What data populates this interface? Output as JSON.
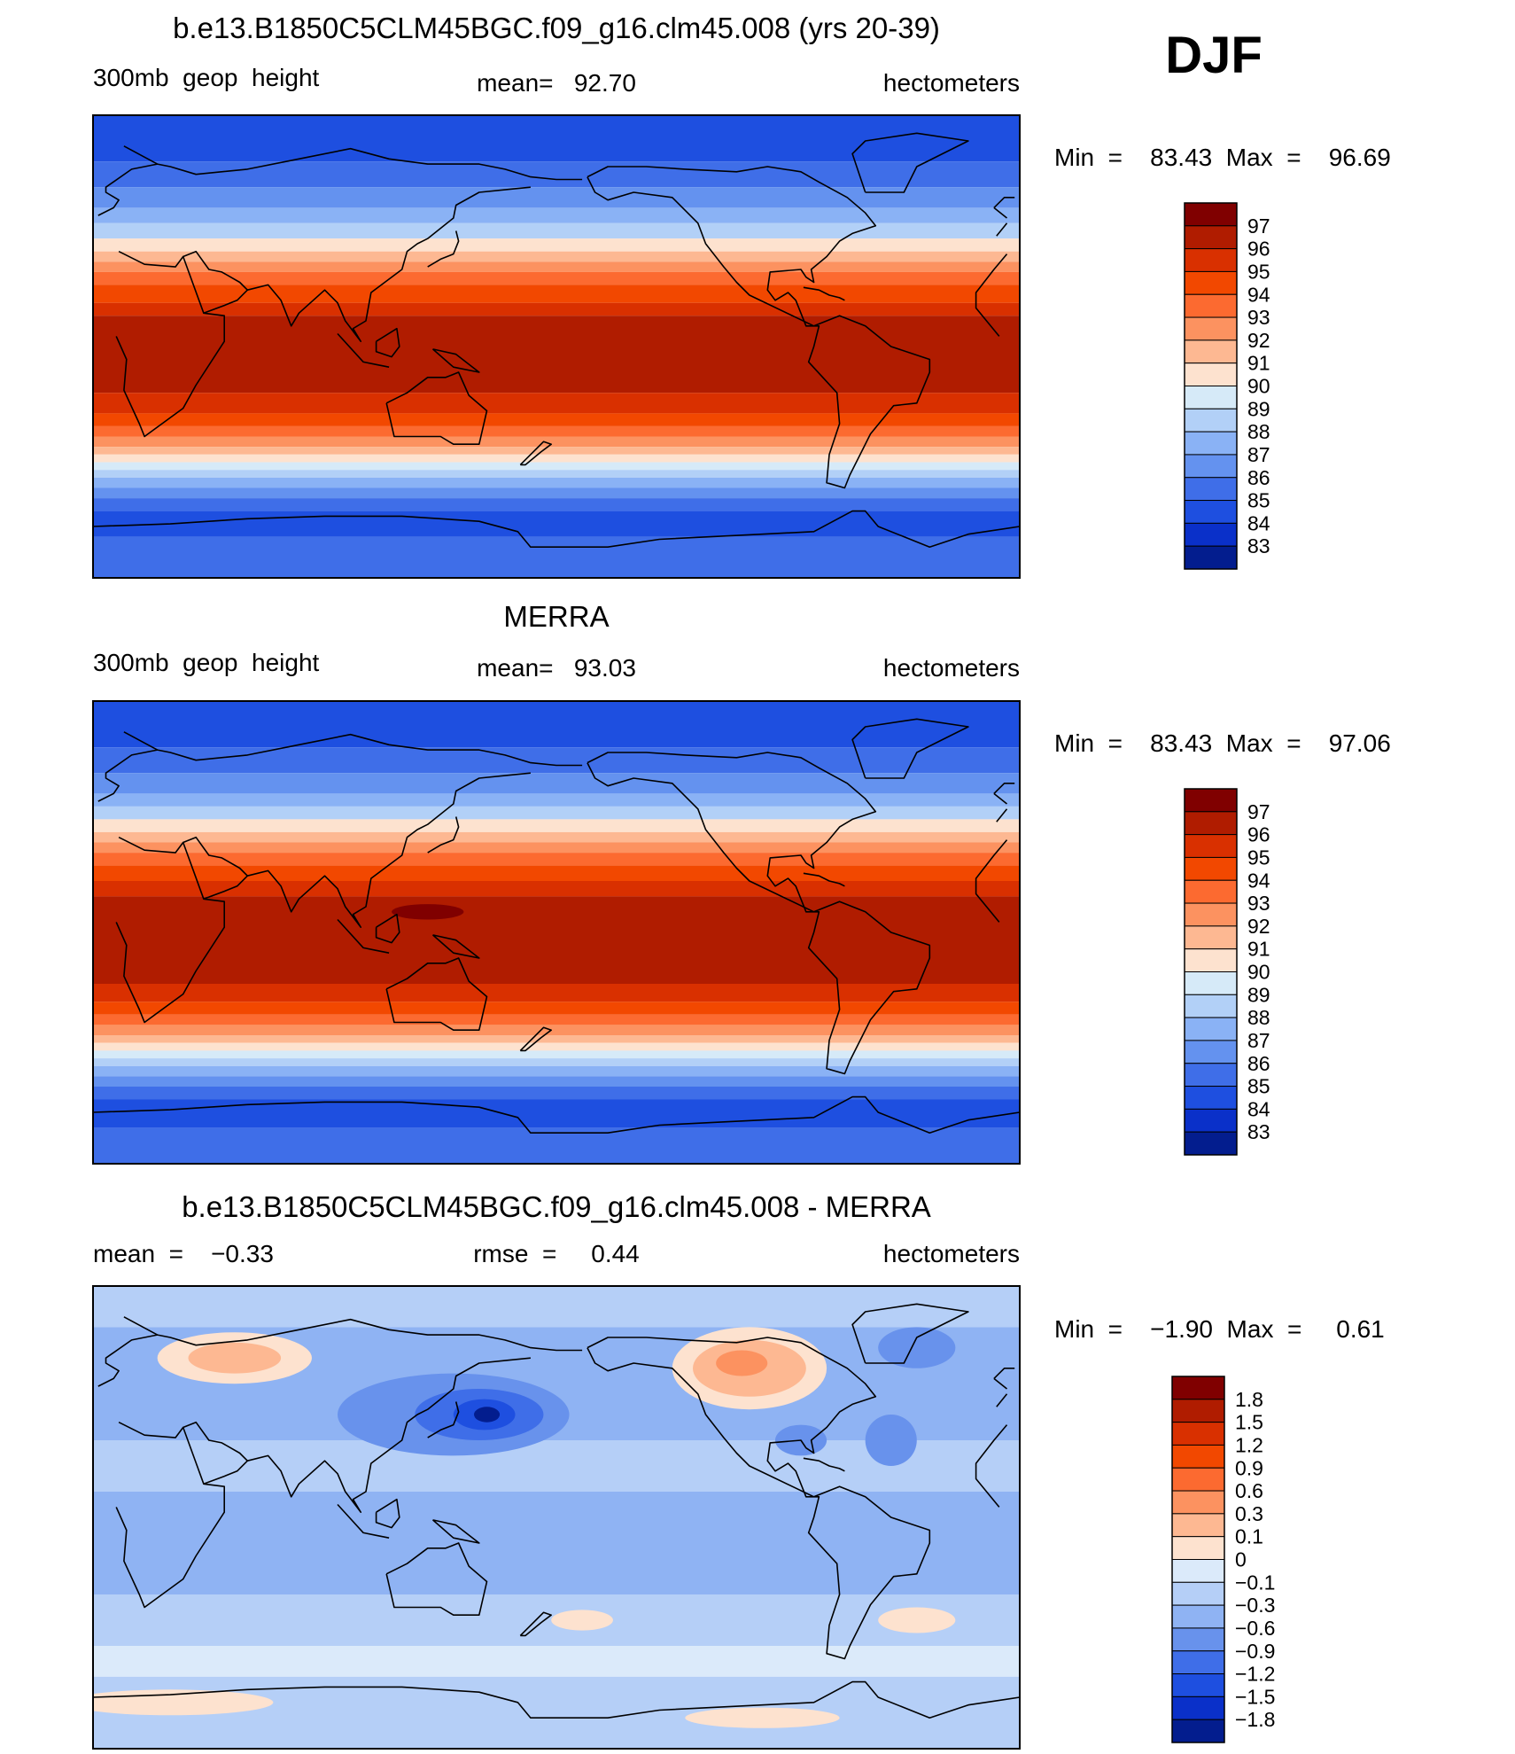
{
  "season": "DJF",
  "panels": [
    {
      "id": "model",
      "title": "b.e13.B1850C5CLM45BGC.f09_g16.clm45.008 (yrs 20-39)",
      "left": "300mb  geop  height",
      "center": "mean=   92.70",
      "right": "hectometers",
      "minmax": "Min  =    83.43  Max  =    96.69",
      "colorbar": {
        "labels": [
          "97",
          "96",
          "95",
          "94",
          "93",
          "92",
          "91",
          "90",
          "89",
          "88",
          "87",
          "86",
          "85",
          "84",
          "83"
        ],
        "colors": [
          "#800000",
          "#b01c00",
          "#d93000",
          "#f24800",
          "#fc6a30",
          "#fc9260",
          "#fdb892",
          "#fde2cf",
          "#d6eaf8",
          "#b2d0f7",
          "#8ab2f5",
          "#6492ef",
          "#3f6ee8",
          "#1e4fe0",
          "#0a30c9",
          "#031d8e"
        ]
      },
      "map_field": "model"
    },
    {
      "id": "obs",
      "title": "MERRA",
      "left": "300mb  geop  height",
      "center": "mean=   93.03",
      "right": "hectometers",
      "minmax": "Min  =    83.43  Max  =    97.06",
      "colorbar": {
        "labels": [
          "97",
          "96",
          "95",
          "94",
          "93",
          "92",
          "91",
          "90",
          "89",
          "88",
          "87",
          "86",
          "85",
          "84",
          "83"
        ],
        "colors": [
          "#800000",
          "#b01c00",
          "#d93000",
          "#f24800",
          "#fc6a30",
          "#fc9260",
          "#fdb892",
          "#fde2cf",
          "#d6eaf8",
          "#b2d0f7",
          "#8ab2f5",
          "#6492ef",
          "#3f6ee8",
          "#1e4fe0",
          "#0a30c9",
          "#031d8e"
        ]
      },
      "map_field": "obs"
    },
    {
      "id": "diff",
      "title": "b.e13.B1850C5CLM45BGC.f09_g16.clm45.008 - MERRA",
      "left": "mean  =    −0.33",
      "center": "rmse  =     0.44",
      "right": "hectometers",
      "minmax": "Min  =    −1.90  Max  =     0.61",
      "colorbar": {
        "labels": [
          "1.8",
          "1.5",
          "1.2",
          "0.9",
          "0.6",
          "0.3",
          "0.1",
          "0",
          "−0.1",
          "−0.3",
          "−0.6",
          "−0.9",
          "−1.2",
          "−1.5",
          "−1.8"
        ],
        "colors": [
          "#800000",
          "#b01c00",
          "#d93000",
          "#f24800",
          "#fc6a30",
          "#fc9260",
          "#fdb892",
          "#fde2cf",
          "#dbeafa",
          "#b5cff7",
          "#8fb3f3",
          "#6892ec",
          "#3f6ee8",
          "#1e4fe0",
          "#0a30c9",
          "#031d8e"
        ]
      },
      "map_field": "diff"
    }
  ],
  "map_bands": {
    "model": [
      {
        "lat": 90,
        "color": "#1e4fe0"
      },
      {
        "lat": 72,
        "color": "#3f6ee8"
      },
      {
        "lat": 62,
        "color": "#6492ef"
      },
      {
        "lat": 54,
        "color": "#8ab2f5"
      },
      {
        "lat": 48,
        "color": "#b2d0f7"
      },
      {
        "lat": 42,
        "color": "#fde2cf"
      },
      {
        "lat": 37,
        "color": "#fdb892"
      },
      {
        "lat": 33,
        "color": "#fc9260"
      },
      {
        "lat": 29,
        "color": "#fc6a30"
      },
      {
        "lat": 24,
        "color": "#f24800"
      },
      {
        "lat": 17,
        "color": "#d93000"
      },
      {
        "lat": 12,
        "color": "#b01c00"
      },
      {
        "lat": -18,
        "color": "#d93000"
      },
      {
        "lat": -26,
        "color": "#f24800"
      },
      {
        "lat": -31,
        "color": "#fc6a30"
      },
      {
        "lat": -35,
        "color": "#fc9260"
      },
      {
        "lat": -39,
        "color": "#fdb892"
      },
      {
        "lat": -42,
        "color": "#fde2cf"
      },
      {
        "lat": -45,
        "color": "#d6eaf8"
      },
      {
        "lat": -48,
        "color": "#b2d0f7"
      },
      {
        "lat": -51,
        "color": "#8ab2f5"
      },
      {
        "lat": -55,
        "color": "#6492ef"
      },
      {
        "lat": -59,
        "color": "#3f6ee8"
      },
      {
        "lat": -64,
        "color": "#1e4fe0"
      },
      {
        "lat": -74,
        "color": "#3f6ee8"
      }
    ],
    "obs": [
      {
        "lat": 90,
        "color": "#1e4fe0"
      },
      {
        "lat": 72,
        "color": "#3f6ee8"
      },
      {
        "lat": 62,
        "color": "#6492ef"
      },
      {
        "lat": 54,
        "color": "#8ab2f5"
      },
      {
        "lat": 49,
        "color": "#b2d0f7"
      },
      {
        "lat": 44,
        "color": "#fde2cf"
      },
      {
        "lat": 39,
        "color": "#fdb892"
      },
      {
        "lat": 35,
        "color": "#fc9260"
      },
      {
        "lat": 31,
        "color": "#fc6a30"
      },
      {
        "lat": 26,
        "color": "#f24800"
      },
      {
        "lat": 20,
        "color": "#d93000"
      },
      {
        "lat": 14,
        "color": "#b01c00"
      },
      {
        "lat": -20,
        "color": "#d93000"
      },
      {
        "lat": -27,
        "color": "#f24800"
      },
      {
        "lat": -32,
        "color": "#fc6a30"
      },
      {
        "lat": -36,
        "color": "#fc9260"
      },
      {
        "lat": -40,
        "color": "#fdb892"
      },
      {
        "lat": -43,
        "color": "#fde2cf"
      },
      {
        "lat": -46,
        "color": "#d6eaf8"
      },
      {
        "lat": -49,
        "color": "#b2d0f7"
      },
      {
        "lat": -52,
        "color": "#8ab2f5"
      },
      {
        "lat": -56,
        "color": "#6492ef"
      },
      {
        "lat": -60,
        "color": "#3f6ee8"
      },
      {
        "lat": -65,
        "color": "#1e4fe0"
      },
      {
        "lat": -76,
        "color": "#3f6ee8"
      }
    ],
    "diff": [
      {
        "lat": 90,
        "color": "#b5cff7"
      },
      {
        "lat": 74,
        "color": "#8fb3f3"
      },
      {
        "lat": 50,
        "color": "#8fb3f3"
      },
      {
        "lat": 30,
        "color": "#b5cff7"
      },
      {
        "lat": 10,
        "color": "#8fb3f3"
      },
      {
        "lat": -30,
        "color": "#b5cff7"
      },
      {
        "lat": -50,
        "color": "#dbeafa"
      },
      {
        "lat": -62,
        "color": "#b5cff7"
      }
    ]
  },
  "map_blobs": {
    "model": [],
    "obs": [
      {
        "lon": 130,
        "lat": 8,
        "rlon": 14,
        "rlat": 3,
        "color": "#800000"
      }
    ],
    "diff": [
      {
        "lon": 140,
        "lat": 40,
        "rlon": 45,
        "rlat": 16,
        "color": "#6892ec"
      },
      {
        "lon": 150,
        "lat": 40,
        "rlon": 25,
        "rlat": 10,
        "color": "#3f6ee8"
      },
      {
        "lon": 152,
        "lat": 40,
        "rlon": 12,
        "rlat": 6,
        "color": "#1e4fe0"
      },
      {
        "lon": 153,
        "lat": 40,
        "rlon": 5,
        "rlat": 3,
        "color": "#031d8e"
      },
      {
        "lon": 55,
        "lat": 62,
        "rlon": 30,
        "rlat": 10,
        "color": "#fde2cf"
      },
      {
        "lon": 55,
        "lat": 62,
        "rlon": 18,
        "rlat": 6,
        "color": "#fdb892"
      },
      {
        "lon": 255,
        "lat": 58,
        "rlon": 30,
        "rlat": 16,
        "color": "#fde2cf"
      },
      {
        "lon": 255,
        "lat": 58,
        "rlon": 22,
        "rlat": 11,
        "color": "#fdb892"
      },
      {
        "lon": 252,
        "lat": 60,
        "rlon": 10,
        "rlat": 5,
        "color": "#fc9260"
      },
      {
        "lon": 320,
        "lat": 66,
        "rlon": 15,
        "rlat": 8,
        "color": "#6892ec"
      },
      {
        "lon": 310,
        "lat": 30,
        "rlon": 10,
        "rlat": 10,
        "color": "#6892ec"
      },
      {
        "lon": 275,
        "lat": 30,
        "rlon": 10,
        "rlat": 6,
        "color": "#6892ec"
      },
      {
        "lon": 30,
        "lat": -72,
        "rlon": 40,
        "rlat": 5,
        "color": "#fde2cf"
      },
      {
        "lon": 320,
        "lat": -40,
        "rlon": 15,
        "rlat": 5,
        "color": "#fde2cf"
      },
      {
        "lon": 190,
        "lat": -40,
        "rlon": 12,
        "rlat": 4,
        "color": "#fde2cf"
      },
      {
        "lon": 260,
        "lat": -78,
        "rlon": 30,
        "rlat": 4,
        "color": "#fde2cf"
      }
    ]
  },
  "coastlines": [
    [
      [
        12,
        78
      ],
      [
        25,
        71
      ],
      [
        30,
        70
      ],
      [
        40,
        67
      ],
      [
        60,
        69
      ],
      [
        80,
        73
      ],
      [
        100,
        77
      ],
      [
        115,
        73
      ],
      [
        130,
        71
      ],
      [
        150,
        71
      ],
      [
        160,
        69
      ],
      [
        170,
        66
      ],
      [
        180,
        65
      ],
      [
        190,
        65
      ]
    ],
    [
      [
        -10,
        36
      ],
      [
        0,
        43
      ],
      [
        -9,
        43
      ],
      [
        -5,
        48
      ],
      [
        2,
        51
      ],
      [
        8,
        54
      ],
      [
        10,
        57
      ],
      [
        5,
        60
      ],
      [
        5,
        62
      ],
      [
        15,
        69
      ],
      [
        25,
        71
      ]
    ],
    [
      [
        -5,
        36
      ],
      [
        10,
        37
      ],
      [
        20,
        32
      ],
      [
        32,
        31
      ],
      [
        35,
        35
      ],
      [
        43,
        13
      ],
      [
        51,
        12
      ],
      [
        51,
        2
      ],
      [
        40,
        -15
      ],
      [
        35,
        -24
      ],
      [
        20,
        -35
      ],
      [
        18,
        -30
      ],
      [
        12,
        -17
      ],
      [
        13,
        -5
      ],
      [
        9,
        4
      ],
      [
        -8,
        4
      ],
      [
        -17,
        15
      ],
      [
        -17,
        21
      ],
      [
        -10,
        30
      ],
      [
        -5,
        36
      ]
    ],
    [
      [
        35,
        35
      ],
      [
        40,
        37
      ],
      [
        45,
        30
      ],
      [
        50,
        29
      ],
      [
        57,
        25
      ],
      [
        60,
        22
      ],
      [
        56,
        18
      ],
      [
        51,
        16
      ],
      [
        43,
        13
      ]
    ],
    [
      [
        60,
        22
      ],
      [
        68,
        24
      ],
      [
        73,
        18
      ],
      [
        77,
        8
      ],
      [
        80,
        13
      ],
      [
        90,
        22
      ],
      [
        95,
        17
      ],
      [
        98,
        10
      ],
      [
        104,
        2
      ],
      [
        101,
        7
      ],
      [
        106,
        10
      ],
      [
        108,
        21
      ],
      [
        120,
        30
      ],
      [
        122,
        37
      ],
      [
        126,
        40
      ],
      [
        130,
        42
      ],
      [
        140,
        50
      ],
      [
        141,
        55
      ],
      [
        150,
        60
      ],
      [
        160,
        61
      ],
      [
        170,
        62
      ]
    ],
    [
      [
        114,
        -22
      ],
      [
        122,
        -18
      ],
      [
        130,
        -12
      ],
      [
        137,
        -12
      ],
      [
        142,
        -10
      ],
      [
        146,
        -19
      ],
      [
        153,
        -25
      ],
      [
        150,
        -38
      ],
      [
        140,
        -38
      ],
      [
        135,
        -35
      ],
      [
        117,
        -35
      ],
      [
        114,
        -22
      ]
    ],
    [
      [
        166,
        -46
      ],
      [
        172,
        -40
      ],
      [
        175,
        -37
      ],
      [
        178,
        -38
      ],
      [
        174,
        -41
      ],
      [
        168,
        -46
      ],
      [
        166,
        -46
      ]
    ],
    [
      [
        130,
        31
      ],
      [
        135,
        34
      ],
      [
        140,
        36
      ],
      [
        142,
        41
      ],
      [
        141,
        45
      ]
    ],
    [
      [
        95,
        5
      ],
      [
        105,
        -6
      ],
      [
        110,
        -7
      ],
      [
        115,
        -8
      ]
    ],
    [
      [
        110,
        2
      ],
      [
        118,
        7
      ],
      [
        119,
        0
      ],
      [
        116,
        -4
      ],
      [
        110,
        -2
      ],
      [
        110,
        2
      ]
    ],
    [
      [
        132,
        -1
      ],
      [
        141,
        -3
      ],
      [
        150,
        -10
      ],
      [
        140,
        -8
      ],
      [
        132,
        -1
      ]
    ],
    [
      [
        192,
        66
      ],
      [
        200,
        70
      ],
      [
        215,
        70
      ],
      [
        230,
        69
      ],
      [
        250,
        68
      ],
      [
        262,
        70
      ],
      [
        275,
        68
      ],
      [
        282,
        64
      ],
      [
        293,
        58
      ],
      [
        300,
        52
      ],
      [
        304,
        47
      ],
      [
        295,
        44
      ],
      [
        290,
        41
      ],
      [
        285,
        35
      ],
      [
        279,
        30
      ],
      [
        280,
        25
      ],
      [
        277,
        27
      ],
      [
        275,
        30
      ],
      [
        263,
        29
      ],
      [
        262,
        22
      ],
      [
        265,
        18
      ],
      [
        270,
        21
      ],
      [
        273,
        18
      ],
      [
        277,
        8
      ],
      [
        282,
        8
      ],
      [
        280,
        0
      ],
      [
        278,
        -6
      ],
      [
        289,
        -18
      ],
      [
        290,
        -30
      ],
      [
        286,
        -42
      ],
      [
        285,
        -53
      ],
      [
        292,
        -55
      ],
      [
        294,
        -50
      ],
      [
        299,
        -40
      ],
      [
        302,
        -34
      ],
      [
        311,
        -23
      ],
      [
        320,
        -22
      ],
      [
        325,
        -10
      ],
      [
        325,
        -5
      ],
      [
        310,
        0
      ],
      [
        300,
        8
      ],
      [
        290,
        12
      ],
      [
        280,
        8
      ],
      [
        255,
        20
      ],
      [
        250,
        25
      ],
      [
        245,
        31
      ],
      [
        238,
        40
      ],
      [
        235,
        48
      ],
      [
        225,
        58
      ],
      [
        210,
        60
      ],
      [
        200,
        57
      ],
      [
        195,
        60
      ],
      [
        192,
        66
      ]
    ],
    [
      [
        300,
        60
      ],
      [
        315,
        60
      ],
      [
        320,
        70
      ],
      [
        330,
        75
      ],
      [
        340,
        80
      ],
      [
        320,
        83
      ],
      [
        300,
        80
      ],
      [
        295,
        75
      ],
      [
        300,
        60
      ]
    ],
    [
      [
        276,
        23
      ],
      [
        282,
        22
      ],
      [
        286,
        20
      ],
      [
        290,
        19
      ],
      [
        292,
        18
      ]
    ],
    [
      [
        0,
        -70
      ],
      [
        30,
        -69
      ],
      [
        60,
        -67
      ],
      [
        90,
        -66
      ],
      [
        120,
        -66
      ],
      [
        150,
        -68
      ],
      [
        165,
        -72
      ],
      [
        170,
        -78
      ],
      [
        200,
        -78
      ],
      [
        220,
        -75
      ],
      [
        240,
        -74
      ],
      [
        260,
        -73
      ],
      [
        280,
        -72
      ],
      [
        295,
        -64
      ],
      [
        300,
        -64
      ],
      [
        305,
        -70
      ],
      [
        325,
        -78
      ],
      [
        340,
        -73
      ],
      [
        360,
        -70
      ]
    ],
    [
      [
        -10,
        54
      ],
      [
        -6,
        58
      ],
      [
        -2,
        58
      ],
      [
        0,
        52
      ],
      [
        -5,
        50
      ],
      [
        -10,
        54
      ]
    ]
  ]
}
